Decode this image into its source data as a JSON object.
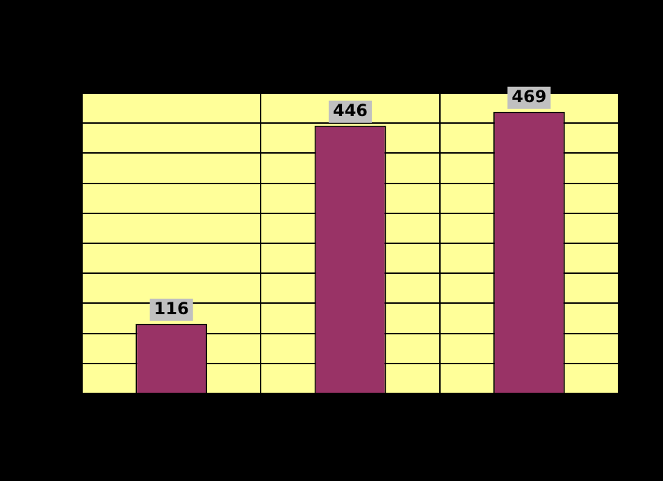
{
  "chart_data": {
    "type": "bar",
    "categories": [
      null,
      null,
      null
    ],
    "values": [
      116,
      446,
      469
    ],
    "color": "#993366",
    "ylim": [
      0,
      500
    ],
    "tick_labels": false,
    "grid": true,
    "legend": false,
    "data_labels": true
  }
}
